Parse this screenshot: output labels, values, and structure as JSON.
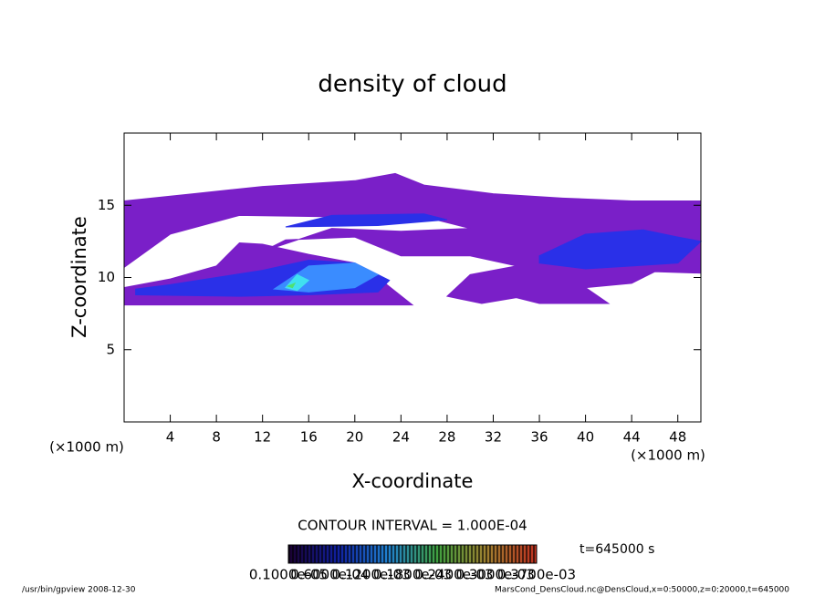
{
  "chart_data": {
    "type": "contour",
    "title": "density of cloud",
    "x_label": "X-coordinate",
    "y_label": "Z-coordinate",
    "x_unit": "(×1000 m)",
    "y_unit": "(×1000 m)",
    "xlim": [
      0,
      50
    ],
    "ylim": [
      0,
      20
    ],
    "xticks": [
      4,
      8,
      12,
      16,
      20,
      24,
      28,
      32,
      36,
      40,
      44,
      48
    ],
    "yticks": [
      5,
      10,
      15
    ],
    "regions": [
      {
        "color": "#7a1fc8",
        "x": [
          0,
          6,
          12,
          20,
          23.5,
          26,
          32,
          38,
          44,
          50,
          50,
          46,
          44,
          40,
          42,
          36,
          34,
          31,
          28,
          30,
          34,
          30,
          24,
          20,
          14,
          12,
          18,
          24,
          30,
          26,
          18,
          10,
          4,
          0
        ],
        "z": [
          15.3,
          15.8,
          16.3,
          16.7,
          17.2,
          16.4,
          15.8,
          15.5,
          15.3,
          15.3,
          10.3,
          10.4,
          9.6,
          9.3,
          8.2,
          8.2,
          8.6,
          8.2,
          8.7,
          10.2,
          10.8,
          11.5,
          11.5,
          12.8,
          12.6,
          11.8,
          13.4,
          13.2,
          13.4,
          14.2,
          14.2,
          14.3,
          13,
          10.7
        ]
      },
      {
        "color": "#7a1fc8",
        "x": [
          0,
          25,
          22,
          20,
          16,
          12,
          10,
          8,
          4,
          0
        ],
        "z": [
          8.1,
          8.1,
          10,
          11,
          11.6,
          12.3,
          12.4,
          10.8,
          9.9,
          9.3
        ]
      },
      {
        "color": "#2a30e8",
        "x": [
          1,
          10,
          16,
          22,
          23,
          20,
          16,
          12,
          8,
          4,
          1
        ],
        "z": [
          8.8,
          8.7,
          8.8,
          9,
          9.8,
          11,
          11.2,
          10.5,
          10,
          9.5,
          9.2
        ]
      },
      {
        "color": "#2a30e8",
        "x": [
          36,
          40,
          45,
          48,
          50,
          48,
          44,
          40,
          36
        ],
        "z": [
          11.5,
          13,
          13.3,
          12.8,
          12.5,
          11,
          10.8,
          10.6,
          11
        ]
      },
      {
        "color": "#2a30e8",
        "x": [
          14,
          22,
          28,
          26,
          18
        ],
        "z": [
          13.5,
          13.6,
          14,
          14.4,
          14.3
        ]
      },
      {
        "color": "#3a8cff",
        "x": [
          13,
          16,
          20,
          22,
          20,
          16
        ],
        "z": [
          9.2,
          10.8,
          11,
          10.2,
          9.3,
          9
        ]
      },
      {
        "color": "#40e0f0",
        "x": [
          14,
          15,
          16,
          15
        ],
        "z": [
          9.3,
          10.2,
          9.8,
          9.1
        ]
      },
      {
        "color": "#50e070",
        "x": [
          14.2,
          14.8,
          14.6
        ],
        "z": [
          9.4,
          9.6,
          9.3
        ]
      }
    ],
    "contour_interval": "CONTOUR INTERVAL = 1.000E-04",
    "time_label": "t=645000 s",
    "colorbar_labels": [
      "0.1000e-05",
      "0.6000e-04",
      "0.1200e-03",
      "0.1800e-03",
      "0.2400e-03",
      "0.3000e-03",
      "0.3700e-03"
    ],
    "footer_left": "/usr/bin/gpview   2008-12-30",
    "footer_right": "MarsCond_DensCloud.nc@DensCloud,x=0:50000,z=0:20000,t=645000"
  }
}
